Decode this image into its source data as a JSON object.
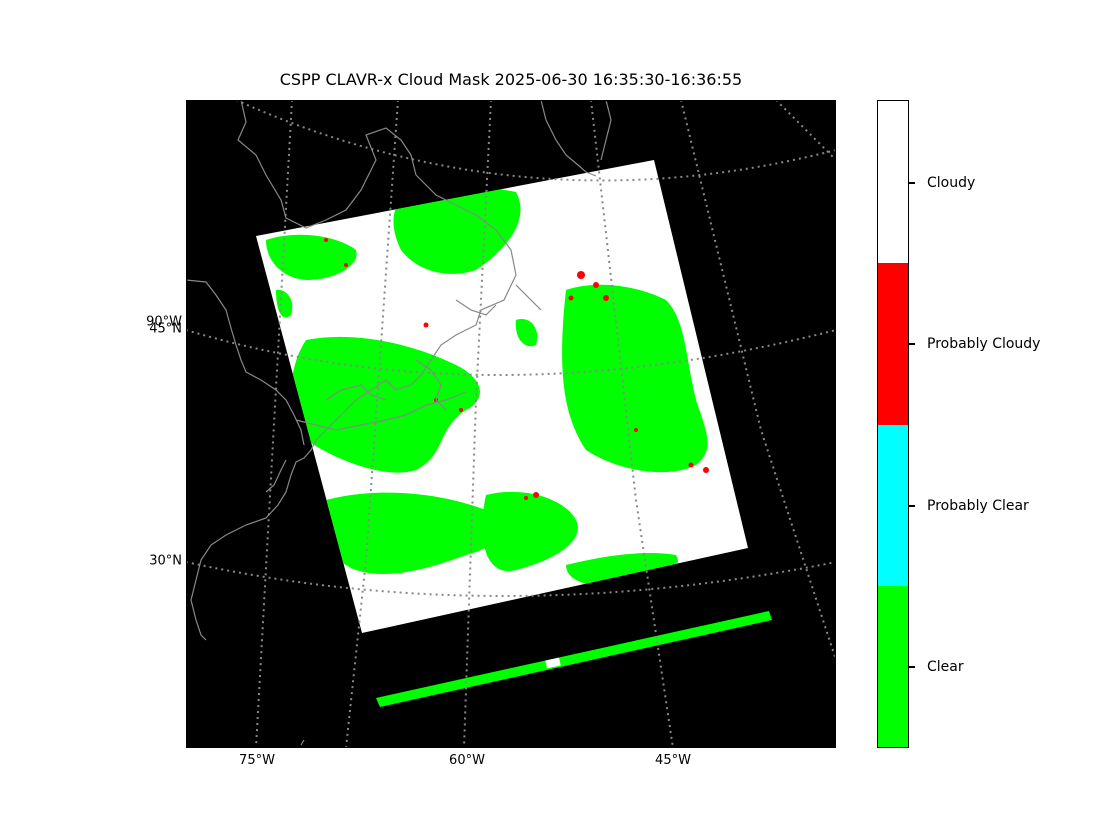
{
  "title": "CSPP CLAVR-x Cloud Mask 2025-06-30 16:35:30-16:36:55",
  "map": {
    "background_color": "#000000",
    "grid_color": "#888888",
    "coastline_color": "#888888",
    "lon_labels": [
      "75°W",
      "60°W",
      "45°W"
    ],
    "lat_labels": [
      "90°W",
      "45°N",
      "30°N"
    ]
  },
  "legend": {
    "type": "categorical-colorbar",
    "categories": [
      {
        "label": "Cloudy",
        "color": "#ffffff"
      },
      {
        "label": "Probably Cloudy",
        "color": "#ff0000"
      },
      {
        "label": "Probably Clear",
        "color": "#00ffff"
      },
      {
        "label": "Clear",
        "color": "#00ff00"
      }
    ]
  }
}
